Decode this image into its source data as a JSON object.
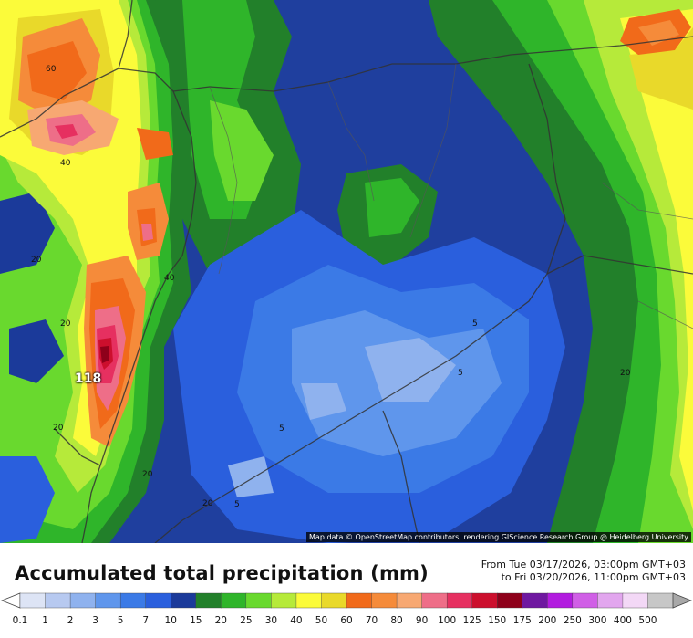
{
  "map": {
    "contour_labels": [
      "60",
      "40",
      "20",
      "40",
      "20",
      "20",
      "20",
      "20",
      "5",
      "5",
      "5",
      "5",
      "20"
    ],
    "max_label": "118",
    "attribution": "Map data © OpenStreetMap contributors, rendering GIScience Research Group @ Heidelberg University"
  },
  "legend": {
    "title": "Accumulated total precipitation (mm)",
    "period_from": "From Tue 03/17/2026, 03:00pm GMT+03",
    "period_to": "to Fri 03/20/2026, 11:00pm GMT+03",
    "units": "mm",
    "tick_labels": [
      "0.1",
      "1",
      "2",
      "3",
      "5",
      "7",
      "10",
      "15",
      "20",
      "25",
      "30",
      "40",
      "50",
      "60",
      "70",
      "80",
      "90",
      "100",
      "125",
      "150",
      "175",
      "200",
      "250",
      "300",
      "400",
      "500"
    ],
    "colors": [
      "#dde4f5",
      "#b7c9f0",
      "#8fb2ee",
      "#5f96ec",
      "#3b7ae6",
      "#2a5fdd",
      "#1b3a9a",
      "#22802a",
      "#2fb52a",
      "#69d92e",
      "#b6ea3a",
      "#fbfb3a",
      "#e9d92a",
      "#f16a1a",
      "#f58b3a",
      "#f7a872",
      "#ee6e88",
      "#e63060",
      "#cc0f2d",
      "#8e001a",
      "#6f18a0",
      "#b21cdf",
      "#d05fe6",
      "#e2a6ee",
      "#f3d8f6",
      "#c7c7c7"
    ]
  }
}
